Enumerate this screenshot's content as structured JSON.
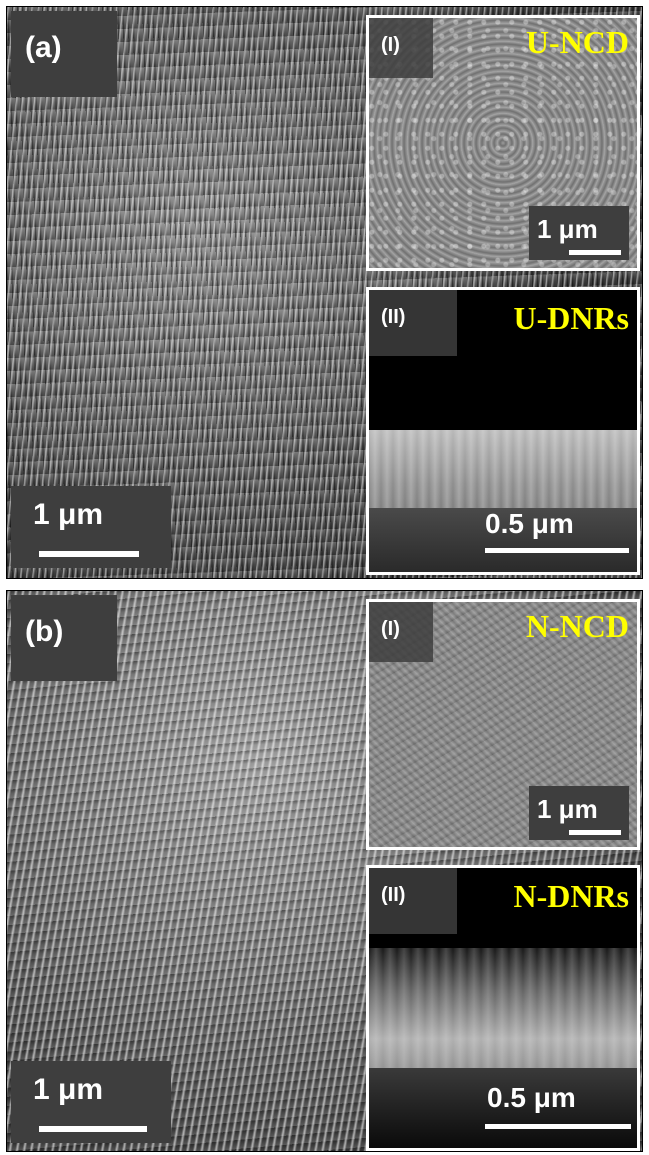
{
  "panel_a": {
    "label": "(a)",
    "scale": "1 μm",
    "inset_top": {
      "label": "(I)",
      "title": "U-NCD",
      "scale": "1 μm"
    },
    "inset_bottom": {
      "label": "(II)",
      "title": "U-DNRs",
      "scale": "0.5 μm"
    }
  },
  "panel_b": {
    "label": "(b)",
    "scale": "1 μm",
    "inset_top": {
      "label": "(I)",
      "title": "N-NCD",
      "scale": "1 μm"
    },
    "inset_bottom": {
      "label": "(II)",
      "title": "N-DNRs",
      "scale": "0.5 μm"
    }
  },
  "colors": {
    "inset_title": "#ffff00",
    "label_box": "#3e3e3e"
  }
}
